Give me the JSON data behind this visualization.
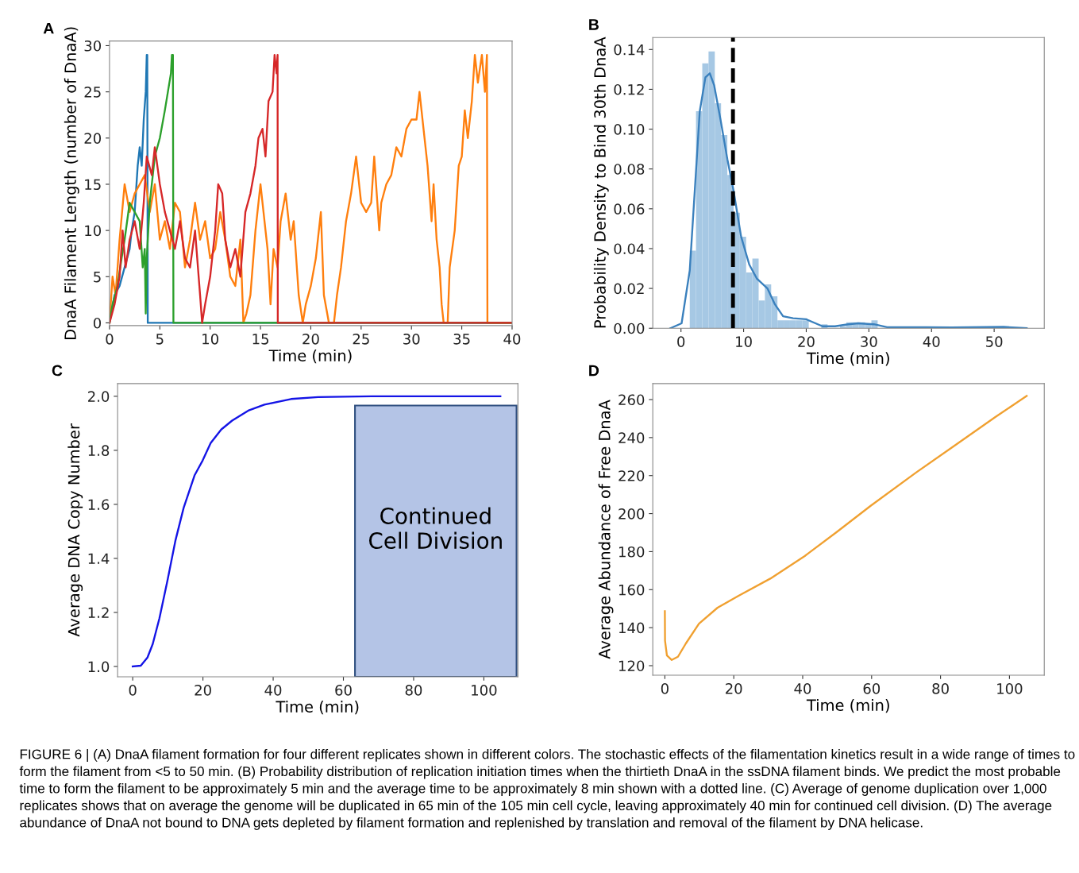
{
  "chart_data": [
    {
      "type": "line",
      "title": "A",
      "xlabel": "Time (min)",
      "ylabel": "DnaA Filament Length (number of DnaA)",
      "xlim": [
        0,
        40
      ],
      "ylim": [
        -0.3,
        30.5
      ],
      "xticks": [
        0,
        5,
        10,
        15,
        20,
        25,
        30,
        35,
        40
      ],
      "yticks": [
        0,
        5,
        10,
        15,
        20,
        25,
        30
      ],
      "grid": false,
      "line_style": "solid",
      "series": [
        {
          "color": "#1f77b4",
          "x": [
            0,
            0.5,
            1,
            1.5,
            2,
            2.2,
            2.5,
            2.8,
            3.0,
            3.2,
            3.4,
            3.6,
            3.7,
            3.75,
            3.8,
            40
          ],
          "values": [
            0,
            3,
            4,
            6,
            8,
            10,
            12,
            17,
            19,
            17,
            22,
            25,
            29,
            29,
            0,
            0
          ]
        },
        {
          "color": "#ff7f0e",
          "x": [
            0,
            0.3,
            0.6,
            1,
            1.5,
            2,
            2.5,
            3,
            3.5,
            4,
            4.5,
            5,
            5.5,
            6,
            6.5,
            7,
            7.5,
            8,
            8.5,
            9,
            9.5,
            10,
            10.5,
            11,
            11.5,
            12,
            12.5,
            13,
            13.3,
            13.6,
            14,
            14.5,
            15,
            15.3,
            15.7,
            16,
            16.3,
            16.7,
            17,
            17.5,
            18,
            18.3,
            18.8,
            19.2,
            19.5,
            20,
            20.5,
            21,
            21.3,
            21.8,
            22.3,
            22.6,
            23,
            23.5,
            24,
            24.5,
            25,
            25.5,
            26,
            26.3,
            26.8,
            27,
            27.5,
            28,
            28.5,
            29,
            29.5,
            30,
            30.5,
            30.8,
            31.3,
            31.6,
            32,
            32.2,
            32.5,
            32.8,
            33,
            33.2,
            33.6,
            33.8,
            34.3,
            34.7,
            35,
            35.3,
            35.6,
            36,
            36.3,
            36.6,
            37,
            37.3,
            37.5,
            37.55,
            40
          ],
          "values": [
            0,
            5,
            3,
            9,
            15,
            12,
            14,
            15,
            16,
            12,
            15,
            9,
            11,
            8,
            13,
            12,
            6,
            9,
            13,
            9,
            11,
            7,
            8,
            12,
            9,
            5,
            4,
            9,
            0,
            1,
            3,
            10,
            15,
            12,
            8,
            2,
            8,
            6,
            11,
            14,
            9,
            11,
            3,
            0,
            2,
            4,
            7,
            12,
            3,
            0,
            0,
            3,
            6,
            11,
            14,
            18,
            13,
            12,
            13,
            18,
            10,
            13,
            15,
            16,
            19,
            18,
            21,
            22,
            22,
            25,
            20,
            17,
            11,
            15,
            9,
            6,
            2,
            0,
            0,
            6,
            10,
            17,
            18,
            23,
            20,
            24,
            29,
            26,
            29,
            25,
            29,
            0,
            0
          ]
        },
        {
          "color": "#2ca02c",
          "x": [
            0,
            0.3,
            0.8,
            1.2,
            1.5,
            2,
            2.5,
            3,
            3.3,
            3.5,
            3.6,
            3.7,
            4,
            4.5,
            5,
            5.5,
            5.8,
            6.1,
            6.2,
            6.3,
            6.35,
            40
          ],
          "values": [
            0,
            2,
            4,
            7,
            9,
            13,
            12,
            11,
            6,
            8,
            1,
            7,
            13,
            18,
            20,
            23,
            25,
            27,
            29,
            29,
            0,
            0
          ]
        },
        {
          "color": "#d62728",
          "x": [
            0,
            0.5,
            1,
            1.3,
            1.6,
            2,
            2.5,
            3,
            3.4,
            3.7,
            4.2,
            4.5,
            5,
            5.5,
            6,
            6.5,
            7,
            7.5,
            8,
            8.5,
            9,
            9.2,
            9.5,
            10,
            10.5,
            10.8,
            11.2,
            11.5,
            12,
            12.5,
            13,
            13.5,
            14,
            14.5,
            14.8,
            15.2,
            15.5,
            15.8,
            16.2,
            16.4,
            16.6,
            16.7,
            16.72,
            40
          ],
          "values": [
            0,
            2,
            5,
            10,
            6,
            9,
            11,
            8,
            13,
            18,
            16,
            19,
            15,
            12,
            10,
            8,
            11,
            7,
            6,
            10,
            3,
            0,
            2,
            5,
            10,
            15,
            14,
            9,
            6,
            8,
            5,
            12,
            14,
            17,
            20,
            21,
            18,
            24,
            25,
            29,
            27,
            29,
            0,
            0
          ]
        }
      ]
    },
    {
      "type": "histogram",
      "title": "B",
      "xlabel": "Time (min)",
      "ylabel": "Probability Density to Bind 30th DnaA",
      "xlim": [
        -4.5,
        58
      ],
      "ylim": [
        0,
        0.146
      ],
      "xticks": [
        0,
        10,
        20,
        30,
        40,
        50
      ],
      "yticks": [
        {
          "value": 0,
          "label": "0.00"
        },
        {
          "value": 0.02,
          "label": "0.02"
        },
        {
          "value": 0.04,
          "label": "0.04"
        },
        {
          "value": 0.06,
          "label": "0.06"
        },
        {
          "value": 0.08,
          "label": "0.08"
        },
        {
          "value": 0.1,
          "label": "0.10"
        },
        {
          "value": 0.12,
          "label": "0.12"
        },
        {
          "value": 0.14,
          "label": "0.14"
        }
      ],
      "grid": false,
      "color": "#a6c8e4",
      "bins": [
        1.4,
        2.4,
        3.4,
        4.4,
        5.4,
        6.4,
        7.4,
        8.4,
        9.4,
        10.4,
        11.4,
        12.4,
        13.4,
        14.4,
        15.4,
        16.4,
        17.4,
        18.4,
        19.4,
        20.4,
        21.4,
        22.4,
        23.4,
        24.4,
        25.4,
        26.4,
        27.4,
        28.4,
        29.4,
        30.4,
        31.4
      ],
      "values": [
        0.039,
        0.109,
        0.133,
        0.139,
        0.113,
        0.097,
        0.077,
        0.058,
        0.046,
        0.028,
        0.035,
        0.014,
        0.022,
        0.016,
        0.004,
        0.004,
        0.004,
        0.004,
        0.004,
        0,
        0,
        0.002,
        0,
        0,
        0.001,
        0.003,
        0.003,
        0.003,
        0.002,
        0.004
      ],
      "series": [
        {
          "type": "line",
          "color": "#3a80bd",
          "x": [
            -1.7,
            0.1,
            1.4,
            2.2,
            3.0,
            3.9,
            4.6,
            5.3,
            6.3,
            7.4,
            8.4,
            9.6,
            10.9,
            12.1,
            13.8,
            15.0,
            16.3,
            17.9,
            20.0,
            22.6,
            24.6,
            26.7,
            28.3,
            30.8,
            32.9,
            39.1,
            43.2,
            51.5,
            55.2
          ],
          "values": [
            0,
            0.0025,
            0.029,
            0.069,
            0.109,
            0.126,
            0.128,
            0.122,
            0.105,
            0.085,
            0.069,
            0.046,
            0.032,
            0.025,
            0.02,
            0.012,
            0.006,
            0.005,
            0.0045,
            0.001,
            0.001,
            0.002,
            0.0025,
            0.002,
            0.0005,
            0.0005,
            0.0004,
            0.0007,
            0
          ]
        }
      ],
      "ref_lines": [
        {
          "axis": "x",
          "value": 8.3,
          "color": "#000000",
          "line_style": "dashed"
        }
      ]
    },
    {
      "type": "line",
      "title": "C",
      "xlabel": "Time (min)",
      "ylabel": "Average DNA Copy Number",
      "xlim": [
        -4.3,
        109.7
      ],
      "ylim": [
        0.962,
        2.047
      ],
      "xticks": [
        0,
        20,
        40,
        60,
        80,
        100
      ],
      "yticks": [
        {
          "value": 1.0,
          "label": "1.0"
        },
        1.2,
        1.4,
        1.6,
        1.8,
        {
          "value": 2.0,
          "label": "2.0"
        }
      ],
      "grid": false,
      "series": [
        {
          "color": "#1414e6",
          "x": [
            0,
            2.3,
            4.2,
            5.7,
            7.6,
            9.9,
            12.2,
            14.5,
            17.6,
            19.9,
            22.2,
            25.2,
            28.3,
            32.9,
            37.5,
            45.1,
            52.8,
            68.0,
            104.7
          ],
          "values": [
            1.0,
            1.003,
            1.033,
            1.083,
            1.178,
            1.318,
            1.468,
            1.587,
            1.707,
            1.762,
            1.827,
            1.877,
            1.91,
            1.947,
            1.969,
            1.99,
            1.997,
            2.0,
            2.0
          ]
        }
      ],
      "bands": [
        {
          "axis": "x",
          "from": 63.3,
          "to": 109.3,
          "label": "Continued\nCell Division",
          "color": "#b4c4e6"
        }
      ]
    },
    {
      "type": "line",
      "title": "D",
      "xlabel": "Time (min)",
      "ylabel": "Average Abundance of Free DnaA",
      "xlim": [
        -3.5,
        110.1
      ],
      "ylim": [
        115,
        268.4
      ],
      "xticks": [
        0,
        20,
        40,
        60,
        80,
        100
      ],
      "yticks": [
        120,
        140,
        160,
        180,
        200,
        220,
        240,
        260
      ],
      "grid": false,
      "series": [
        {
          "color": "#f0a030",
          "x": [
            0,
            0.05,
            0.6,
            2.0,
            3.8,
            6.1,
            9.9,
            15.3,
            21.4,
            30.6,
            40.6,
            49.8,
            59.8,
            72.9,
            84.4,
            95.9,
            105.0
          ],
          "values": [
            148.7,
            133.1,
            125.4,
            123.0,
            124.7,
            131.7,
            142.1,
            150.5,
            156.8,
            165.8,
            177.7,
            190.2,
            204.2,
            221.6,
            236.2,
            250.8,
            261.9
          ]
        }
      ],
      "annotations": [
        "FIGURE 6 | (A) DnaA filament formation for four different replicates shown in different colors. The stochastic effects of the filamentation kinetics result in a wide range of times to form the filament from <5 to 50 min. (B) Probability distribution of replication initiation times when the thirtieth DnaA in the ssDNA filament binds. We predict the most probable time to form the filament to be approximately 5 min and the average time to be approximately 8 min shown with a dotted line. (C) Average of genome duplication over 1,000 replicates shows that on average the genome will be duplicated in 65 min of the 105 min cell cycle, leaving approximately 40 min for continued cell division. (D) The average abundance of DnaA not bound to DNA gets depleted by filament formation and replenished by translation and removal of the filament by DNA helicase."
      ]
    }
  ]
}
